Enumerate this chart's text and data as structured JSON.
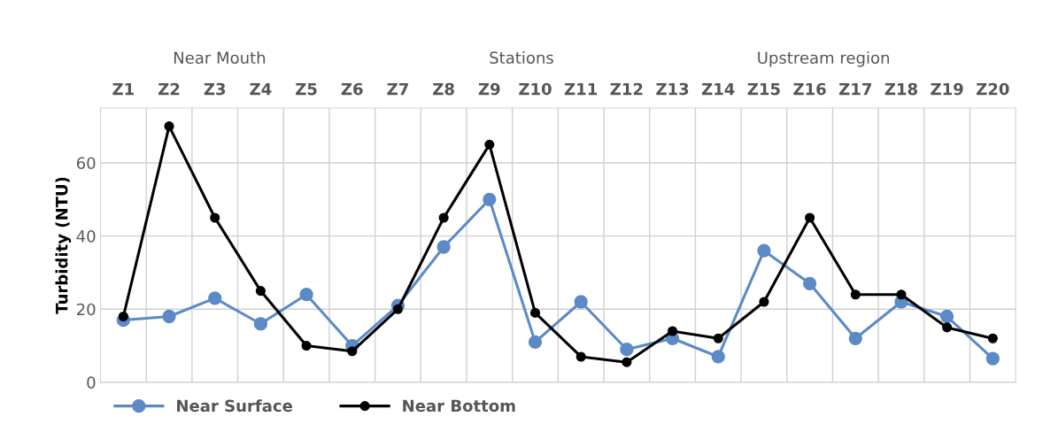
{
  "chart_data": {
    "type": "line",
    "ylabel": "Turbidity (NTU)",
    "categories": [
      "Z1",
      "Z2",
      "Z3",
      "Z4",
      "Z5",
      "Z6",
      "Z7",
      "Z8",
      "Z9",
      "Z10",
      "Z11",
      "Z12",
      "Z13",
      "Z14",
      "Z15",
      "Z16",
      "Z17",
      "Z18",
      "Z19",
      "Z20"
    ],
    "series": [
      {
        "name": "Near Surface",
        "color": "#5b8ac6",
        "values": [
          17,
          18,
          23,
          16,
          24,
          10,
          21,
          37,
          50,
          11,
          22,
          9,
          12,
          7,
          36,
          27,
          12,
          22,
          18,
          6.5
        ]
      },
      {
        "name": "Near Bottom",
        "color": "#000000",
        "values": [
          18,
          70,
          45,
          25,
          10,
          8.5,
          20,
          45,
          65,
          19,
          7,
          5.5,
          14,
          12,
          22,
          45,
          24,
          24,
          15,
          12
        ]
      }
    ],
    "annotations": [
      "Near Mouth",
      "Stations",
      "Upstream region"
    ],
    "ylim": [
      0,
      75
    ],
    "yticks": [
      0,
      20,
      40,
      60
    ],
    "grid": true,
    "legend": "bottom left",
    "marker": "circle",
    "line_style": "solid"
  }
}
